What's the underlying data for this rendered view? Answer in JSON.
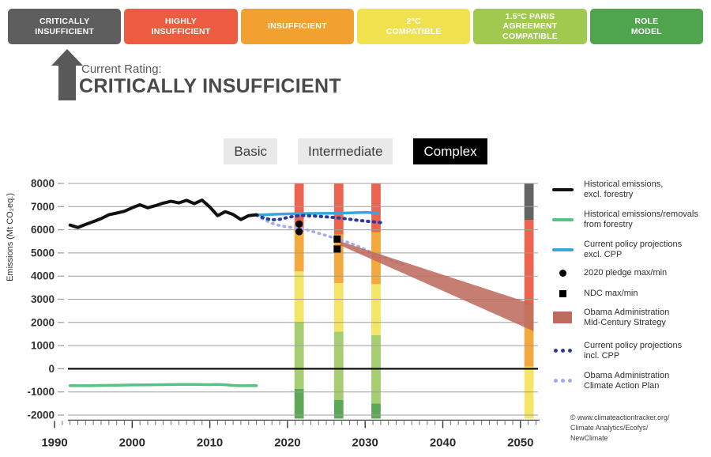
{
  "rating_scale": {
    "items": [
      {
        "label": "CRITICALLY\nINSUFFICIENT",
        "color": "#5E5E5E"
      },
      {
        "label": "HIGHLY\nINSUFFICIENT",
        "color": "#ED5B40"
      },
      {
        "label": "INSUFFICIENT",
        "color": "#F0A12F"
      },
      {
        "label": "2°C\nCOMPATIBLE",
        "color": "#F0E24E"
      },
      {
        "label": "1.5°C PARIS\nAGREEMENT\nCOMPATIBLE",
        "color": "#A2C94F"
      },
      {
        "label": "ROLE\nMODEL",
        "color": "#4FA44D"
      }
    ]
  },
  "current_rating": {
    "prefix": "Current Rating:",
    "value": "CRITICALLY INSUFFICIENT"
  },
  "tabs": [
    {
      "label": "Basic",
      "active": false
    },
    {
      "label": "Intermediate",
      "active": false
    },
    {
      "label": "Complex",
      "active": true
    }
  ],
  "chart_data": {
    "type": "line",
    "title": "",
    "xlabel": "",
    "ylabel": "Emissions (Mt CO₂eq.)",
    "xlim": [
      1990,
      2052.3
    ],
    "ylim": [
      -2150,
      8000
    ],
    "yticks": [
      8000,
      7000,
      6000,
      5000,
      4000,
      3000,
      2000,
      1000,
      0,
      -1000,
      -2000
    ],
    "xticks": [
      1990,
      2000,
      2010,
      2020,
      2030,
      2040,
      2050
    ],
    "grid": true,
    "legend_position": "right",
    "series": [
      {
        "name": "Historical emissions, excl. forestry",
        "style": "line",
        "color": "#111111",
        "width": 4,
        "points": [
          [
            1992,
            6200
          ],
          [
            1993,
            6100
          ],
          [
            1994,
            6230
          ],
          [
            1995,
            6350
          ],
          [
            1996,
            6480
          ],
          [
            1997,
            6650
          ],
          [
            1998,
            6720
          ],
          [
            1999,
            6800
          ],
          [
            2000,
            6950
          ],
          [
            2001,
            7080
          ],
          [
            2002,
            6950
          ],
          [
            2003,
            7040
          ],
          [
            2004,
            7150
          ],
          [
            2005,
            7230
          ],
          [
            2006,
            7160
          ],
          [
            2007,
            7270
          ],
          [
            2008,
            7130
          ],
          [
            2009,
            7280
          ],
          [
            2010,
            6980
          ],
          [
            2011,
            6610
          ],
          [
            2012,
            6780
          ],
          [
            2013,
            6660
          ],
          [
            2014,
            6440
          ],
          [
            2015,
            6610
          ],
          [
            2016,
            6650
          ]
        ]
      },
      {
        "name": "Historical emissions/removals from forestry",
        "style": "line",
        "color": "#58C284",
        "width": 3.5,
        "points": [
          [
            1992,
            -730
          ],
          [
            1994,
            -735
          ],
          [
            1996,
            -720
          ],
          [
            1998,
            -710
          ],
          [
            2000,
            -700
          ],
          [
            2002,
            -695
          ],
          [
            2004,
            -685
          ],
          [
            2006,
            -680
          ],
          [
            2008,
            -675
          ],
          [
            2010,
            -685
          ],
          [
            2011,
            -680
          ],
          [
            2012,
            -690
          ],
          [
            2013,
            -720
          ],
          [
            2014,
            -735
          ],
          [
            2015,
            -730
          ],
          [
            2016,
            -730
          ]
        ]
      },
      {
        "name": "Current policy projections excl. CPP",
        "style": "line",
        "color": "#3AA5D9",
        "width": 3.5,
        "points": [
          [
            2016,
            6640
          ],
          [
            2017,
            6650
          ],
          [
            2018,
            6665
          ],
          [
            2020,
            6685
          ],
          [
            2022,
            6700
          ],
          [
            2024,
            6705
          ],
          [
            2026,
            6715
          ],
          [
            2028,
            6730
          ],
          [
            2030,
            6750
          ],
          [
            2031.6,
            6730
          ]
        ]
      },
      {
        "name": "Current policy projections incl. CPP",
        "style": "dotted",
        "color": "#2B3A9E",
        "width": 4,
        "points": [
          [
            2016,
            6640
          ],
          [
            2017,
            6500
          ],
          [
            2018,
            6430
          ],
          [
            2019,
            6450
          ],
          [
            2020,
            6530
          ],
          [
            2021,
            6590
          ],
          [
            2022,
            6615
          ],
          [
            2023,
            6600
          ],
          [
            2024,
            6580
          ],
          [
            2025,
            6555
          ],
          [
            2026,
            6530
          ],
          [
            2027,
            6500
          ],
          [
            2028,
            6455
          ],
          [
            2029,
            6410
          ],
          [
            2030,
            6375
          ],
          [
            2031,
            6345
          ],
          [
            2032,
            6310
          ]
        ]
      },
      {
        "name": "Obama Administration Climate Action Plan",
        "style": "dotted",
        "color": "#A3A9ED",
        "width": 3.5,
        "points": [
          [
            2016,
            6620
          ],
          [
            2017,
            6430
          ],
          [
            2018,
            6280
          ],
          [
            2019,
            6180
          ],
          [
            2020,
            6120
          ],
          [
            2021,
            6090
          ],
          [
            2022,
            6040
          ],
          [
            2023,
            5950
          ],
          [
            2024,
            5850
          ],
          [
            2025,
            5750
          ],
          [
            2026,
            5650
          ],
          [
            2027,
            5550
          ],
          [
            2028,
            5430
          ],
          [
            2029,
            5300
          ],
          [
            2030,
            5150
          ],
          [
            2031,
            5000
          ],
          [
            2032,
            4870
          ],
          [
            2033,
            4730
          ],
          [
            2034,
            4600
          ],
          [
            2035,
            4480
          ]
        ]
      }
    ],
    "markers": [
      {
        "name": "2020 pledge max/min",
        "shape": "circle",
        "color": "#000000",
        "points": [
          [
            2021.5,
            6250
          ],
          [
            2021.5,
            5920
          ]
        ]
      },
      {
        "name": "NDC max/min",
        "shape": "square",
        "color": "#000000",
        "points": [
          [
            2026.4,
            5600
          ],
          [
            2026.4,
            5170
          ]
        ]
      }
    ],
    "wedge": {
      "name": "Obama Administration Mid-Century Strategy",
      "color": "#BE6B5E",
      "opacity": 0.88,
      "x": [
        2026.8,
        2051.7
      ],
      "top": [
        5500,
        2780
      ],
      "bottom": [
        5330,
        1620
      ]
    },
    "rating_bands": {
      "bar_width_years": 1.2,
      "colors": {
        "red": "#EC6450",
        "orange": "#F3A93E",
        "yellow": "#F4E566",
        "lightgreen": "#A6CD72",
        "darkgreen": "#5CA857",
        "gray": "#636363"
      },
      "bars": [
        {
          "year": 2021.5,
          "segments": [
            [
              "red",
              8000,
              5900
            ],
            [
              "orange",
              5900,
              4200
            ],
            [
              "yellow",
              4200,
              2000
            ],
            [
              "lightgreen",
              2000,
              -870
            ],
            [
              "darkgreen",
              -870,
              -2150
            ]
          ]
        },
        {
          "year": 2026.6,
          "segments": [
            [
              "red",
              8000,
              5800
            ],
            [
              "orange",
              5800,
              3700
            ],
            [
              "yellow",
              3700,
              1600
            ],
            [
              "lightgreen",
              1600,
              -1350
            ],
            [
              "darkgreen",
              -1350,
              -2150
            ]
          ]
        },
        {
          "year": 2031.4,
          "segments": [
            [
              "red",
              8000,
              5900
            ],
            [
              "orange",
              5900,
              3650
            ],
            [
              "yellow",
              3650,
              1450
            ],
            [
              "lightgreen",
              1450,
              -1500
            ],
            [
              "darkgreen",
              -1500,
              -2150
            ]
          ]
        },
        {
          "year": 2051.1,
          "segments": [
            [
              "gray",
              8000,
              6430
            ],
            [
              "red",
              6430,
              2760
            ],
            [
              "orange",
              2760,
              90
            ],
            [
              "yellow",
              90,
              -2150
            ]
          ]
        }
      ]
    },
    "legend": [
      {
        "symbol": "line",
        "color": "#111111",
        "label": "Historical emissions,\nexcl. forestry"
      },
      {
        "symbol": "line",
        "color": "#58C284",
        "label": "Historical emissions/removals\nfrom forestry"
      },
      {
        "symbol": "line",
        "color": "#3AA5D9",
        "label": "Current policy projections\nexcl. CPP"
      },
      {
        "symbol": "circle",
        "color": "#000000",
        "label": "2020 pledge max/min"
      },
      {
        "symbol": "square",
        "color": "#000000",
        "label": "NDC max/min"
      },
      {
        "symbol": "rect",
        "color": "#BE6B5E",
        "label": "Obama Administration\nMid-Century Strategy"
      },
      {
        "symbol": "dots",
        "color": "#2B3A9E",
        "label": "Current policy projections\nincl. CPP"
      },
      {
        "symbol": "dots",
        "color": "#A3A9ED",
        "label": "Obama Administration\nClimate Action Plan"
      }
    ],
    "copyright": "© www.climateactiontracker.org/\nClimate Analytics/Ecofys/\nNewClimate"
  }
}
